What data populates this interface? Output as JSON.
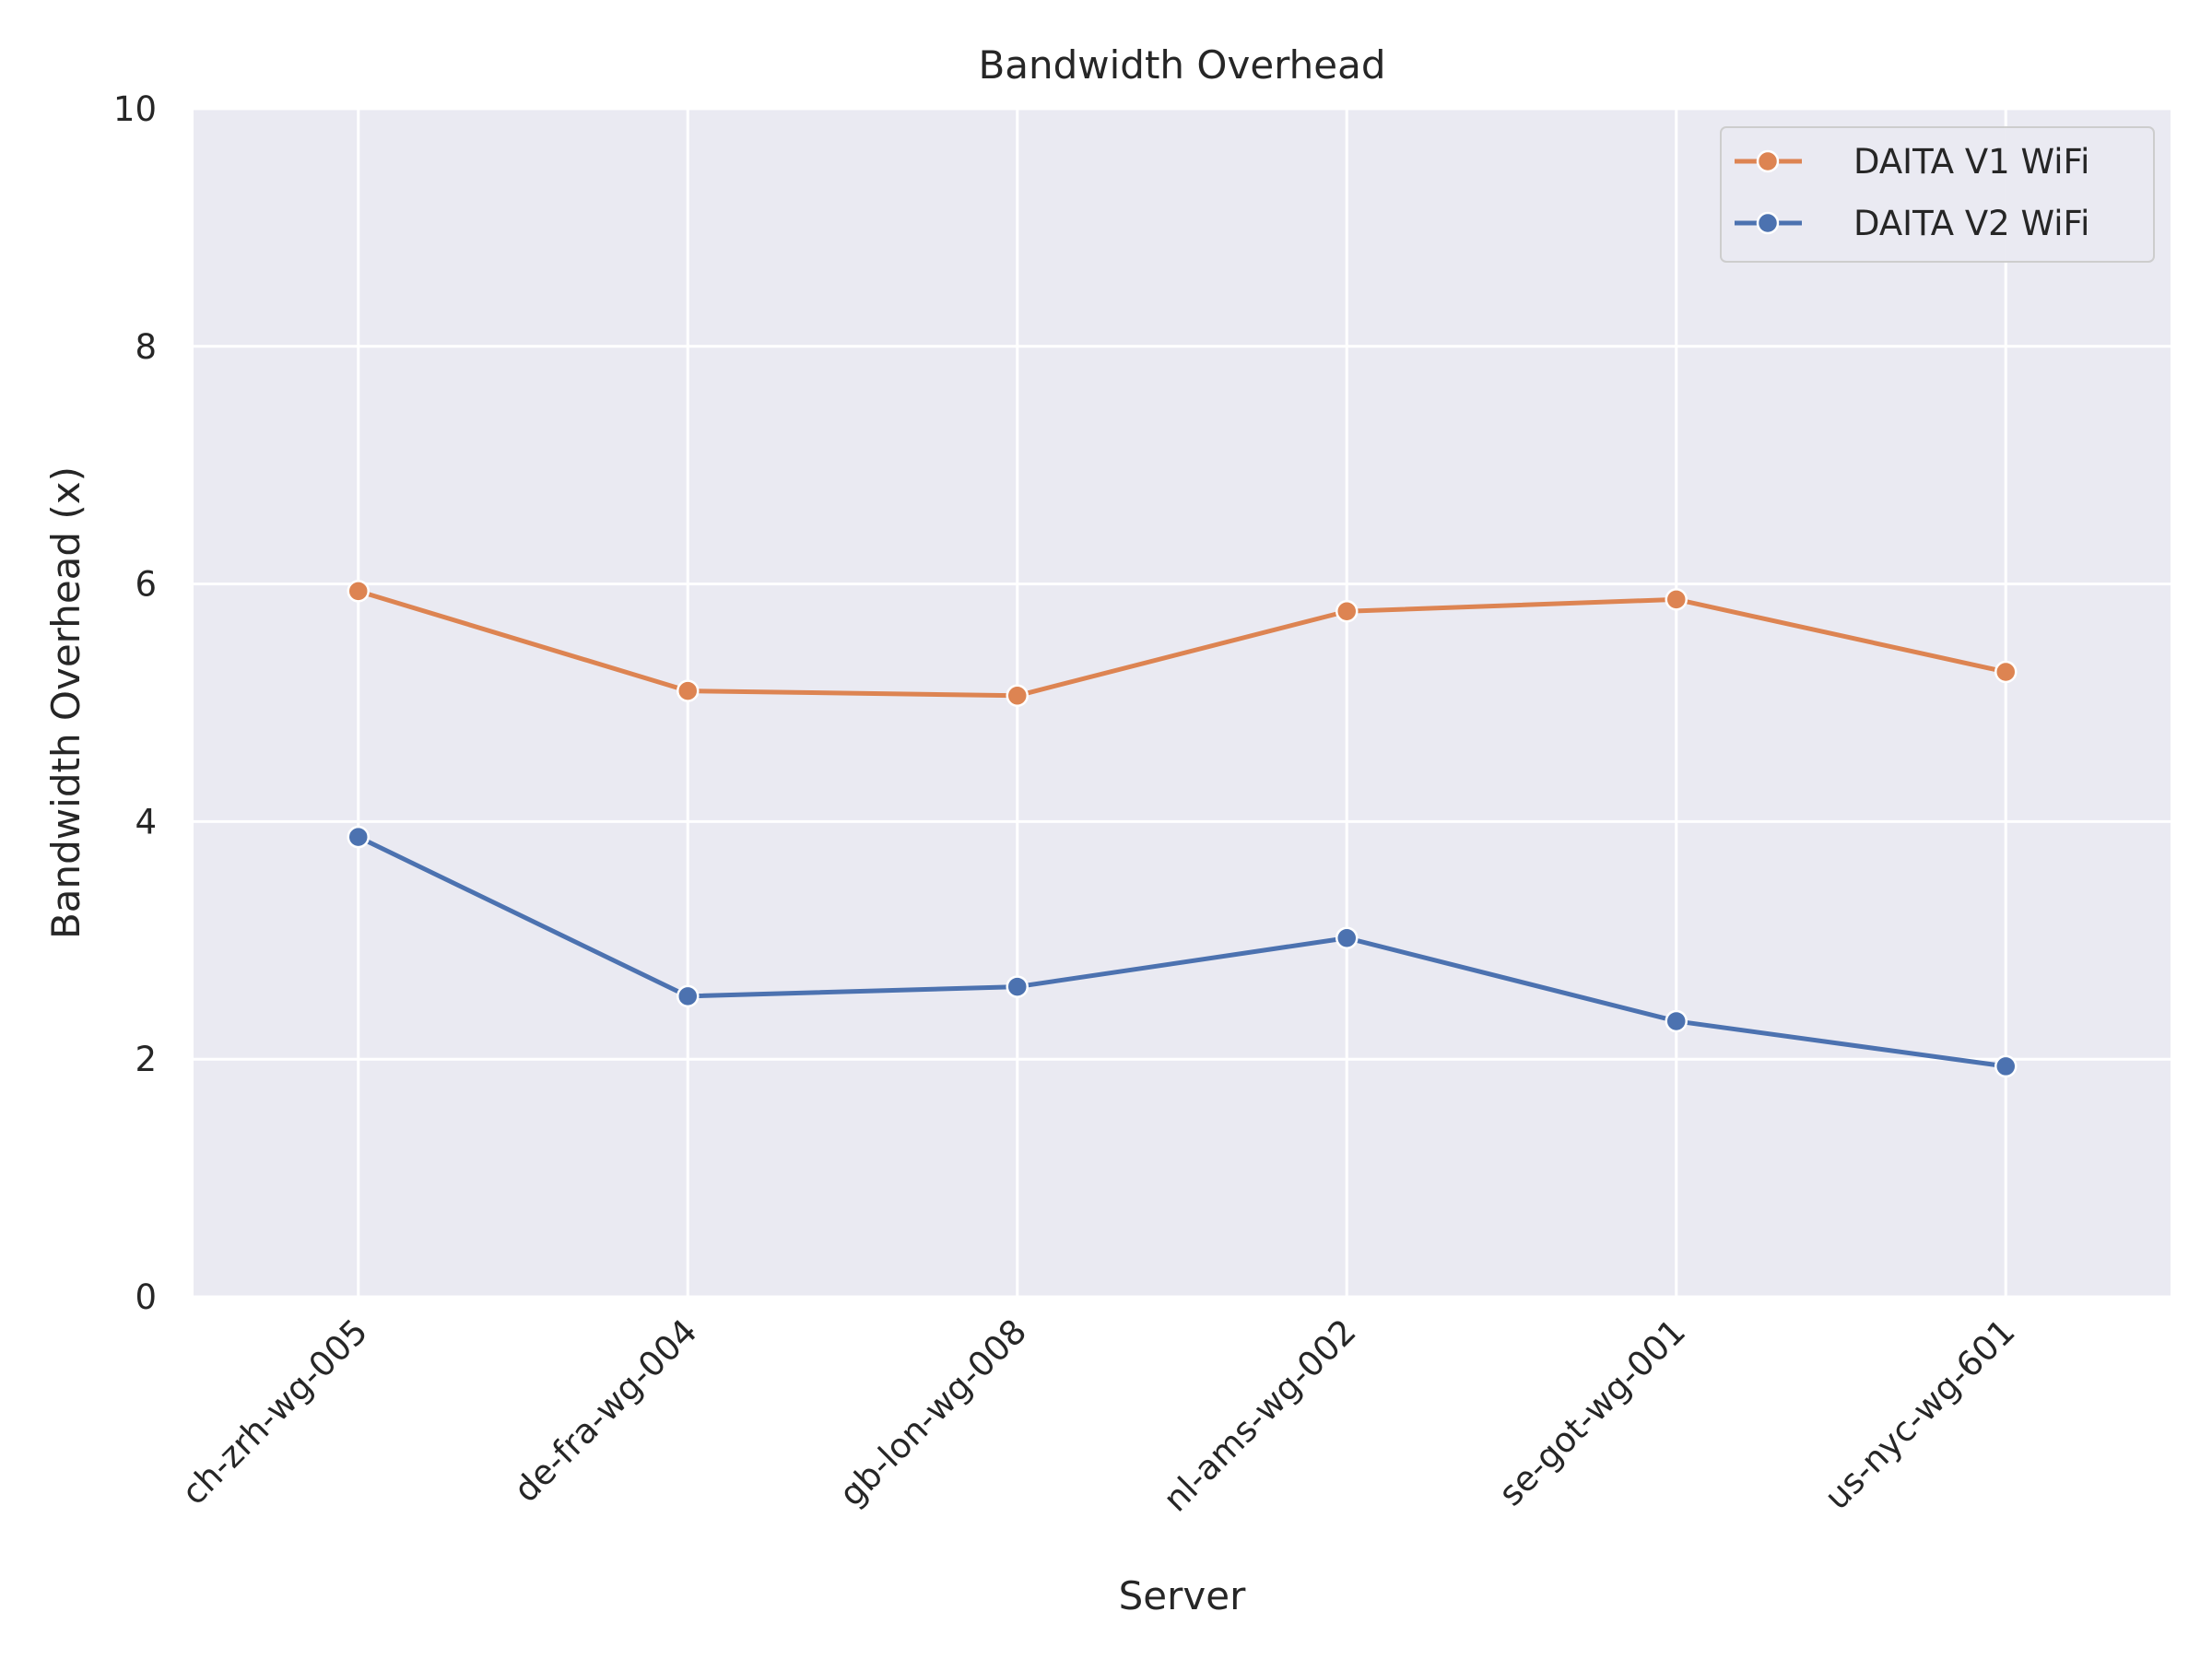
{
  "chart_data": {
    "type": "line",
    "title": "Bandwidth Overhead",
    "xlabel": "Server",
    "ylabel": "Bandwidth Overhead (x)",
    "categories": [
      "ch-zrh-wg-005",
      "de-fra-wg-004",
      "gb-lon-wg-008",
      "nl-ams-wg-002",
      "se-got-wg-001",
      "us-nyc-wg-601"
    ],
    "ylim": [
      0,
      10
    ],
    "yticks": [
      0,
      2,
      4,
      6,
      8,
      10
    ],
    "grid": true,
    "legend_position": "top-right",
    "series": [
      {
        "name": "DAITA V1 WiFi",
        "color": "#dd8452",
        "marker": "circle",
        "values": [
          5.94,
          5.1,
          5.06,
          5.77,
          5.87,
          5.26
        ]
      },
      {
        "name": "DAITA V2 WiFi",
        "color": "#4c72b0",
        "marker": "circle",
        "values": [
          3.87,
          2.53,
          2.61,
          3.02,
          2.32,
          1.94
        ]
      }
    ]
  }
}
